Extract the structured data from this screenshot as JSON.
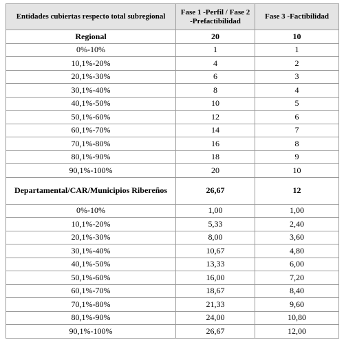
{
  "table": {
    "header": [
      "Entidades cubiertas respecto total subregional",
      "Fase 1 -Perfil / Fase 2 -Prefactibilidad",
      "Fase 3 -Factibilidad"
    ],
    "sections": [
      {
        "label": [
          "Regional",
          "20",
          "10"
        ],
        "rows": [
          [
            "0%-10%",
            "1",
            "1"
          ],
          [
            "10,1%-20%",
            "4",
            "2"
          ],
          [
            "20,1%-30%",
            "6",
            "3"
          ],
          [
            "30,1%-40%",
            "8",
            "4"
          ],
          [
            "40,1%-50%",
            "10",
            "5"
          ],
          [
            "50,1%-60%",
            "12",
            "6"
          ],
          [
            "60,1%-70%",
            "14",
            "7"
          ],
          [
            "70,1%-80%",
            "16",
            "8"
          ],
          [
            "80,1%-90%",
            "18",
            "9"
          ],
          [
            "90,1%-100%",
            "20",
            "10"
          ]
        ]
      },
      {
        "label": [
          "Departamental/CAR/Municipios Ribereños",
          "26,67",
          "12"
        ],
        "rows": [
          [
            "0%-10%",
            "1,00",
            "1,00"
          ],
          [
            "10,1%-20%",
            "5,33",
            "2,40"
          ],
          [
            "20,1%-30%",
            "8,00",
            "3,60"
          ],
          [
            "30,1%-40%",
            "10,67",
            "4,80"
          ],
          [
            "40,1%-50%",
            "13,33",
            "6,00"
          ],
          [
            "50,1%-60%",
            "16,00",
            "7,20"
          ],
          [
            "60,1%-70%",
            "18,67",
            "8,40"
          ],
          [
            "70,1%-80%",
            "21,33",
            "9,60"
          ],
          [
            "80,1%-90%",
            "24,00",
            "10,80"
          ],
          [
            "90,1%-100%",
            "26,67",
            "12,00"
          ]
        ]
      }
    ]
  }
}
